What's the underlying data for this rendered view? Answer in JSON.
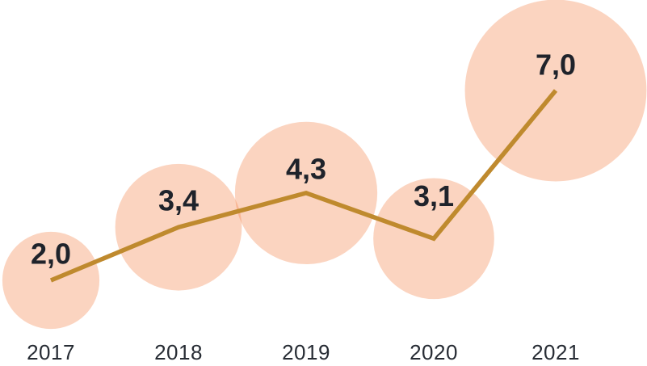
{
  "chart": {
    "background_color": "#ffffff",
    "bubble_color": "#f38046",
    "bubble_opacity": 0.34,
    "line_color": "#bf8a2e",
    "line_width": 5.5,
    "value_label_color": "#1f232b",
    "axis_label_color": "#272c34"
  },
  "chart_data": {
    "type": "bubble-line",
    "title": "",
    "xlabel": "",
    "ylabel": "",
    "categories": [
      "2017",
      "2018",
      "2019",
      "2020",
      "2021"
    ],
    "values": [
      2.0,
      3.4,
      4.3,
      3.1,
      7.0
    ],
    "value_labels": [
      "2,0",
      "3,4",
      "4,3",
      "3,1",
      "7,0"
    ],
    "decimal_separator": ",",
    "series": [
      {
        "name": "value-per-year",
        "values": [
          2.0,
          3.4,
          4.3,
          3.1,
          7.0
        ]
      }
    ],
    "legend": "none",
    "grid": false,
    "axes_visible": false,
    "bubble_area_proportional_to_value": true,
    "layout": {
      "x_positions": [
        63,
        221,
        379,
        537,
        688
      ],
      "y_intercept": 441,
      "y_per_unit": 47,
      "radius_scale": 42.5,
      "value_label_dy": [
        -33,
        -33,
        -30,
        -53,
        -32
      ],
      "x_axis_baseline_y": 445
    }
  }
}
